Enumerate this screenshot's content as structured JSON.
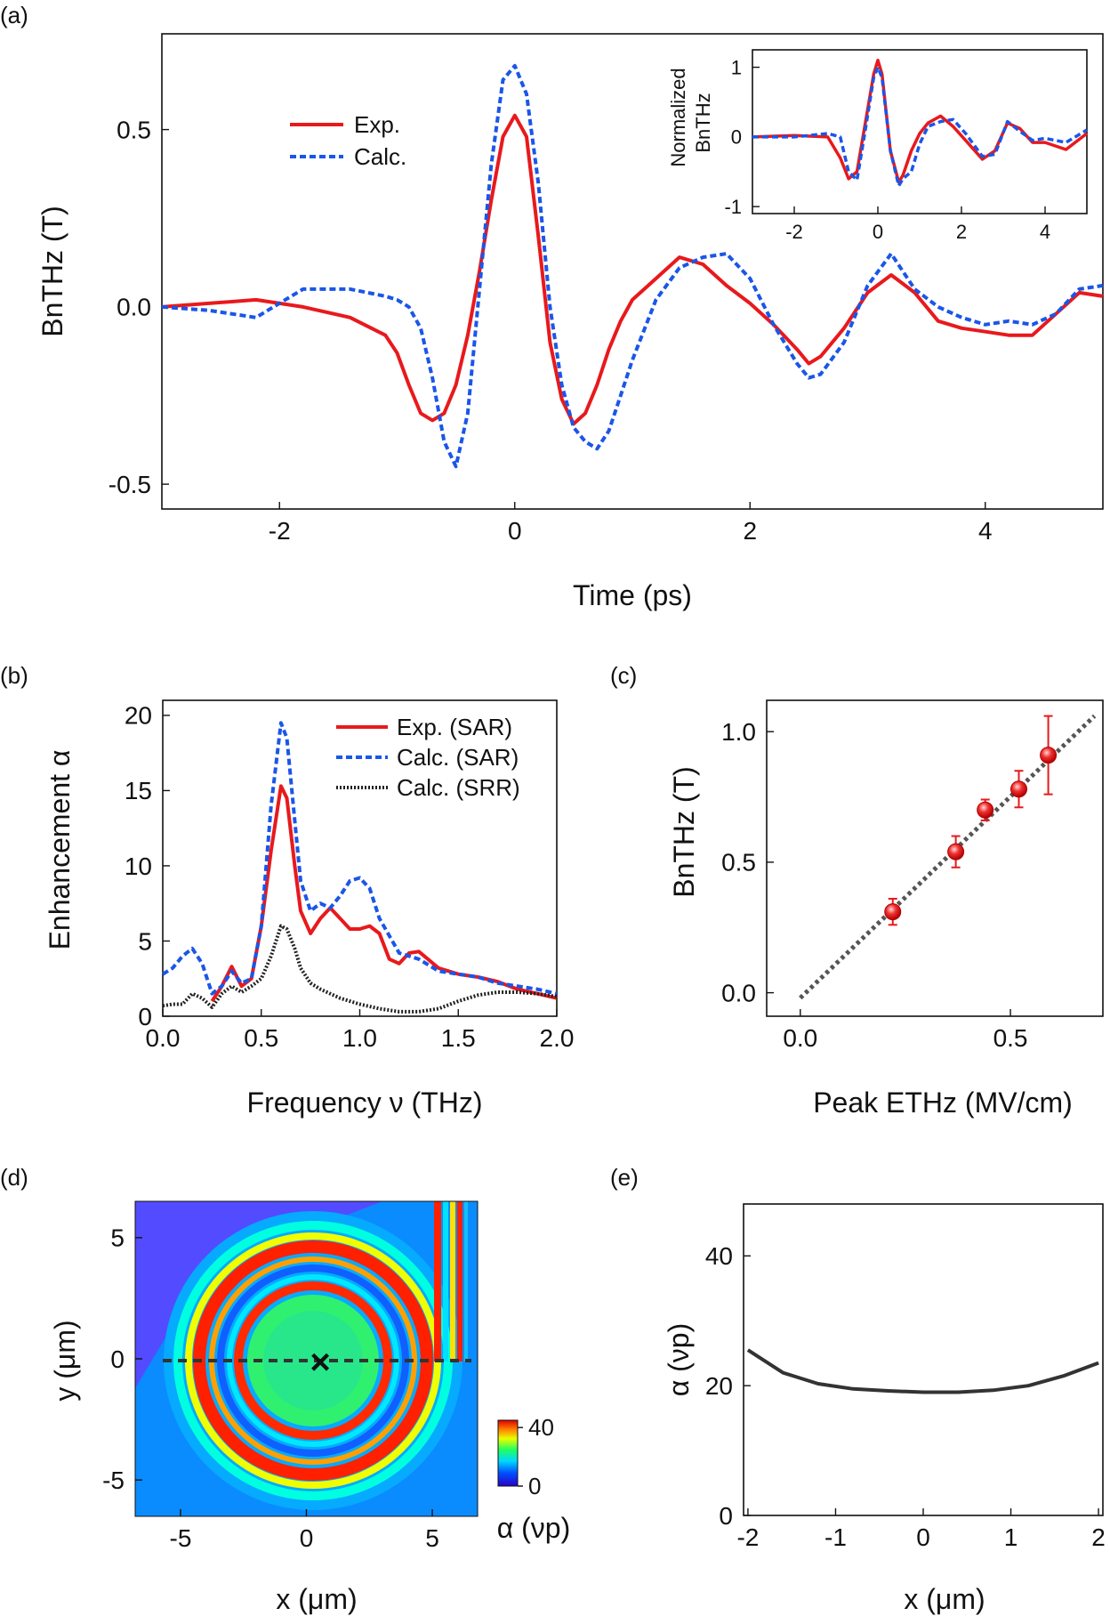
{
  "chart_data": [
    {
      "panel": "(a)",
      "type": "line",
      "xlabel": "Time (ps)",
      "ylabel": "BnTHz (T)",
      "xlim": [
        -3.0,
        5.0
      ],
      "ylim": [
        -0.57,
        0.77
      ],
      "xticks": [
        -2,
        0,
        2,
        4
      ],
      "yticks": [
        -0.5,
        0.0,
        0.5
      ],
      "tick_labels_x": [
        "-2",
        "0",
        "2",
        "4"
      ],
      "tick_labels_y": [
        "-0.5",
        "0.0",
        "0.5"
      ],
      "legend_position": "top-left",
      "series": [
        {
          "name": "Exp.",
          "color": "#e8191c",
          "style": "solid",
          "x": [
            -3.0,
            -2.6,
            -2.2,
            -1.8,
            -1.4,
            -1.1,
            -1.0,
            -0.9,
            -0.8,
            -0.7,
            -0.6,
            -0.5,
            -0.4,
            -0.3,
            -0.2,
            -0.1,
            0.0,
            0.1,
            0.2,
            0.3,
            0.4,
            0.5,
            0.6,
            0.7,
            0.8,
            0.9,
            1.0,
            1.2,
            1.4,
            1.6,
            1.8,
            2.0,
            2.2,
            2.4,
            2.5,
            2.6,
            2.8,
            3.0,
            3.2,
            3.4,
            3.6,
            3.8,
            4.0,
            4.2,
            4.4,
            4.6,
            4.8,
            5.0
          ],
          "y": [
            0.0,
            0.01,
            0.02,
            0.0,
            -0.03,
            -0.08,
            -0.13,
            -0.22,
            -0.3,
            -0.32,
            -0.3,
            -0.22,
            -0.08,
            0.1,
            0.3,
            0.48,
            0.54,
            0.48,
            0.2,
            -0.1,
            -0.26,
            -0.33,
            -0.3,
            -0.22,
            -0.12,
            -0.04,
            0.02,
            0.08,
            0.14,
            0.12,
            0.06,
            0.01,
            -0.05,
            -0.12,
            -0.16,
            -0.14,
            -0.06,
            0.04,
            0.09,
            0.04,
            -0.04,
            -0.06,
            -0.07,
            -0.08,
            -0.08,
            -0.02,
            0.04,
            0.03
          ]
        },
        {
          "name": "Calc.",
          "color": "#1a56e8",
          "style": "dashed",
          "x": [
            -3.0,
            -2.6,
            -2.2,
            -1.8,
            -1.4,
            -1.1,
            -1.0,
            -0.9,
            -0.8,
            -0.7,
            -0.6,
            -0.5,
            -0.4,
            -0.3,
            -0.2,
            -0.1,
            0.0,
            0.1,
            0.2,
            0.3,
            0.4,
            0.5,
            0.6,
            0.7,
            0.8,
            0.9,
            1.0,
            1.2,
            1.4,
            1.6,
            1.8,
            2.0,
            2.2,
            2.4,
            2.5,
            2.6,
            2.8,
            3.0,
            3.2,
            3.4,
            3.6,
            3.8,
            4.0,
            4.2,
            4.4,
            4.6,
            4.8,
            5.0
          ],
          "y": [
            0.0,
            -0.01,
            -0.03,
            0.05,
            0.05,
            0.03,
            0.02,
            0.0,
            -0.06,
            -0.2,
            -0.38,
            -0.45,
            -0.3,
            0.05,
            0.4,
            0.64,
            0.68,
            0.6,
            0.35,
            0.0,
            -0.22,
            -0.34,
            -0.38,
            -0.4,
            -0.35,
            -0.25,
            -0.15,
            0.02,
            0.11,
            0.14,
            0.15,
            0.08,
            -0.05,
            -0.16,
            -0.2,
            -0.19,
            -0.1,
            0.06,
            0.15,
            0.05,
            0.0,
            -0.03,
            -0.05,
            -0.04,
            -0.05,
            -0.02,
            0.05,
            0.06
          ]
        }
      ]
    },
    {
      "panel": "(a) inset",
      "type": "line",
      "ylabel_line1": "Normalized",
      "ylabel_line2": "BnTHz",
      "xlim": [
        -3.0,
        5.0
      ],
      "ylim": [
        -1.1,
        1.25
      ],
      "tick_labels_x": [
        "-2",
        "0",
        "2",
        "4"
      ],
      "tick_labels_y": [
        "-1",
        "0",
        "1"
      ],
      "series": [
        {
          "name": "Exp.",
          "color": "#e8191c",
          "style": "solid",
          "x": [
            -3.0,
            -2.0,
            -1.2,
            -0.9,
            -0.7,
            -0.5,
            -0.3,
            -0.1,
            0.0,
            0.1,
            0.3,
            0.5,
            0.6,
            0.8,
            1.0,
            1.2,
            1.5,
            1.8,
            2.1,
            2.5,
            2.8,
            3.1,
            3.4,
            3.7,
            4.0,
            4.5,
            5.0
          ],
          "y": [
            0.0,
            0.02,
            0.0,
            -0.3,
            -0.6,
            -0.5,
            0.2,
            0.9,
            1.1,
            0.9,
            -0.2,
            -0.65,
            -0.55,
            -0.2,
            0.05,
            0.2,
            0.3,
            0.15,
            -0.05,
            -0.32,
            -0.2,
            0.2,
            0.12,
            -0.08,
            -0.08,
            -0.18,
            0.05
          ]
        },
        {
          "name": "Calc.",
          "color": "#1a56e8",
          "style": "dashed",
          "x": [
            -3.0,
            -2.0,
            -1.2,
            -0.9,
            -0.7,
            -0.5,
            -0.3,
            -0.1,
            0.0,
            0.1,
            0.3,
            0.5,
            0.6,
            0.8,
            1.0,
            1.2,
            1.5,
            1.8,
            2.1,
            2.5,
            2.8,
            3.1,
            3.4,
            3.7,
            4.0,
            4.5,
            5.0
          ],
          "y": [
            0.0,
            0.0,
            0.05,
            0.0,
            -0.5,
            -0.62,
            0.1,
            0.85,
            1.0,
            0.85,
            -0.2,
            -0.7,
            -0.6,
            -0.5,
            -0.1,
            0.15,
            0.22,
            0.25,
            0.05,
            -0.28,
            -0.25,
            0.22,
            0.08,
            -0.05,
            -0.02,
            -0.08,
            0.1
          ]
        }
      ]
    },
    {
      "panel": "(b)",
      "type": "line",
      "xlabel": "Frequency ν (THz)",
      "ylabel": "Enhancement α",
      "xlim": [
        0.0,
        2.0
      ],
      "ylim": [
        0,
        21
      ],
      "tick_labels_x": [
        "0.0",
        "0.5",
        "1.0",
        "1.5",
        "2.0"
      ],
      "tick_labels_y": [
        "0",
        "5",
        "10",
        "15",
        "20"
      ],
      "legend_position": "top-right",
      "series": [
        {
          "name": "Exp. (SAR)",
          "color": "#e8191c",
          "style": "solid",
          "x": [
            0.25,
            0.3,
            0.35,
            0.4,
            0.45,
            0.5,
            0.55,
            0.6,
            0.63,
            0.67,
            0.7,
            0.75,
            0.8,
            0.85,
            0.9,
            0.95,
            1.0,
            1.05,
            1.1,
            1.15,
            1.2,
            1.25,
            1.3,
            1.4,
            1.5,
            1.6,
            1.7,
            1.8,
            1.9,
            2.0
          ],
          "y": [
            1.0,
            2.0,
            3.3,
            2.0,
            2.5,
            6.0,
            11.0,
            15.3,
            14.5,
            10.0,
            7.0,
            5.5,
            6.5,
            7.2,
            6.5,
            5.8,
            5.8,
            6.0,
            5.5,
            3.8,
            3.5,
            4.2,
            4.3,
            3.2,
            2.8,
            2.6,
            2.3,
            1.8,
            1.5,
            1.2
          ]
        },
        {
          "name": "Calc. (SAR)",
          "color": "#1a56e8",
          "style": "dashed",
          "x": [
            0.0,
            0.05,
            0.1,
            0.15,
            0.2,
            0.25,
            0.3,
            0.35,
            0.4,
            0.45,
            0.5,
            0.55,
            0.6,
            0.63,
            0.67,
            0.7,
            0.75,
            0.8,
            0.85,
            0.9,
            0.95,
            1.0,
            1.05,
            1.1,
            1.2,
            1.3,
            1.4,
            1.5,
            1.6,
            1.7,
            1.8,
            1.9,
            2.0
          ],
          "y": [
            2.8,
            3.2,
            4.0,
            4.5,
            3.5,
            1.5,
            2.0,
            3.0,
            2.2,
            2.5,
            6.0,
            14.0,
            19.5,
            18.5,
            13.0,
            9.0,
            7.0,
            7.5,
            7.2,
            8.0,
            9.0,
            9.2,
            8.5,
            6.5,
            4.2,
            3.8,
            3.0,
            2.8,
            2.6,
            2.2,
            2.0,
            1.8,
            1.5
          ]
        },
        {
          "name": "Calc. (SRR)",
          "color": "#222222",
          "style": "dotted",
          "x": [
            0.0,
            0.05,
            0.1,
            0.15,
            0.2,
            0.25,
            0.3,
            0.35,
            0.4,
            0.45,
            0.5,
            0.55,
            0.6,
            0.63,
            0.67,
            0.7,
            0.75,
            0.8,
            0.9,
            1.0,
            1.1,
            1.2,
            1.3,
            1.4,
            1.5,
            1.6,
            1.7,
            1.8,
            1.9,
            2.0
          ],
          "y": [
            0.7,
            0.8,
            0.8,
            1.5,
            1.2,
            0.6,
            1.5,
            2.0,
            1.6,
            2.0,
            2.5,
            4.0,
            6.0,
            5.8,
            4.5,
            3.2,
            2.2,
            1.8,
            1.2,
            0.8,
            0.5,
            0.3,
            0.3,
            0.5,
            1.0,
            1.4,
            1.6,
            1.6,
            1.5,
            1.3
          ]
        }
      ]
    },
    {
      "panel": "(c)",
      "type": "scatter",
      "xlabel": "Peak ETHz (MV/cm)",
      "ylabel": "BnTHz (T)",
      "xlim": [
        -0.08,
        0.72
      ],
      "ylim": [
        -0.09,
        1.12
      ],
      "tick_labels_x": [
        "0.0",
        "0.5"
      ],
      "tick_labels_y": [
        "0.0",
        "0.5",
        "1.0"
      ],
      "points": [
        {
          "x": 0.22,
          "y": 0.31,
          "err": 0.05
        },
        {
          "x": 0.37,
          "y": 0.54,
          "err": 0.06
        },
        {
          "x": 0.44,
          "y": 0.7,
          "err": 0.04
        },
        {
          "x": 0.52,
          "y": 0.78,
          "err": 0.07
        },
        {
          "x": 0.59,
          "y": 0.91,
          "err": 0.15
        }
      ],
      "fit_line": {
        "x": [
          0.0,
          0.7
        ],
        "y": [
          -0.02,
          1.06
        ],
        "color": "#555555",
        "style": "dotted"
      },
      "point_color": "#e8191c"
    },
    {
      "panel": "(d)",
      "type": "heatmap",
      "xlabel": "x (μm)",
      "ylabel": "y (μm)",
      "xlim": [
        -6.8,
        6.8
      ],
      "ylim": [
        -6.5,
        6.5
      ],
      "tick_labels_x": [
        "-5",
        "0",
        "5"
      ],
      "tick_labels_y": [
        "-5",
        "0",
        "5"
      ],
      "colorbar": {
        "label": "α (νp)",
        "range": [
          0,
          45
        ],
        "tick_labels": [
          "0",
          "40"
        ],
        "colormap": "jet"
      },
      "marker": {
        "label": "×",
        "x": 0,
        "y": 0
      },
      "cut_line": {
        "x": [
          -6.5,
          6.2
        ],
        "y": 0
      }
    },
    {
      "panel": "(e)",
      "type": "line",
      "xlabel": "x (μm)",
      "ylabel": "α (νp)",
      "xlim": [
        -2.05,
        2.05
      ],
      "ylim": [
        0,
        48
      ],
      "tick_labels_x": [
        "-2",
        "-1",
        "0",
        "1",
        "2"
      ],
      "tick_labels_y": [
        "0",
        "20",
        "40"
      ],
      "series": [
        {
          "color": "#333333",
          "style": "solid",
          "x": [
            -2.0,
            -1.6,
            -1.2,
            -0.8,
            -0.4,
            0.0,
            0.4,
            0.8,
            1.2,
            1.6,
            2.0
          ],
          "y": [
            25.5,
            22.0,
            20.3,
            19.5,
            19.2,
            19.0,
            19.0,
            19.3,
            20.0,
            21.5,
            23.5
          ]
        }
      ]
    }
  ]
}
